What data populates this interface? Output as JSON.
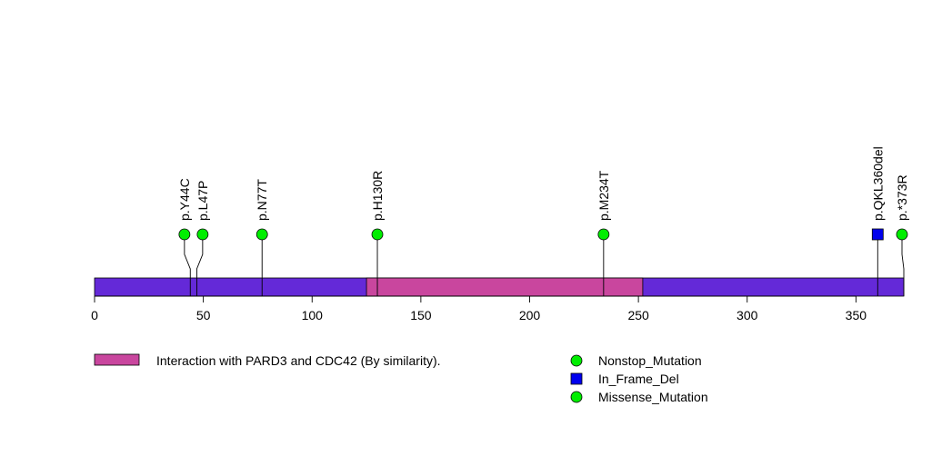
{
  "chart_data": {
    "type": "lollipop",
    "title": "",
    "xlabel": "",
    "ylabel": "",
    "protein_length": 372,
    "xlim": [
      0,
      372
    ],
    "ticks": [
      0,
      50,
      100,
      150,
      200,
      250,
      300,
      350
    ],
    "tick_labels": [
      "0",
      "50",
      "100",
      "150",
      "200",
      "250",
      "300",
      "350"
    ],
    "grid": false,
    "legend_position": "bottom",
    "backbone_color": "#6429d8",
    "domains": [
      {
        "label": "Interaction with PARD3 and CDC42 (By similarity).",
        "start": 125,
        "end": 252,
        "color": "#c9469e"
      }
    ],
    "mutations": [
      {
        "label": "p.Y44C",
        "position": 44,
        "type": "Missense_Mutation"
      },
      {
        "label": "p.L47P",
        "position": 47,
        "type": "Missense_Mutation"
      },
      {
        "label": "p.N77T",
        "position": 77,
        "type": "Missense_Mutation"
      },
      {
        "label": "p.H130R",
        "position": 130,
        "type": "Missense_Mutation"
      },
      {
        "label": "p.M234T",
        "position": 234,
        "type": "Missense_Mutation"
      },
      {
        "label": "p.QKL360del",
        "position": 360,
        "type": "In_Frame_Del"
      },
      {
        "label": "p.*373R",
        "position": 372,
        "type": "Nonstop_Mutation"
      }
    ],
    "legend": [
      {
        "label": "Nonstop_Mutation",
        "shape": "circle",
        "color": "#00ee00"
      },
      {
        "label": "In_Frame_Del",
        "shape": "square",
        "color": "#0000ee"
      },
      {
        "label": "Missense_Mutation",
        "shape": "circle",
        "color": "#00ee00"
      }
    ]
  }
}
